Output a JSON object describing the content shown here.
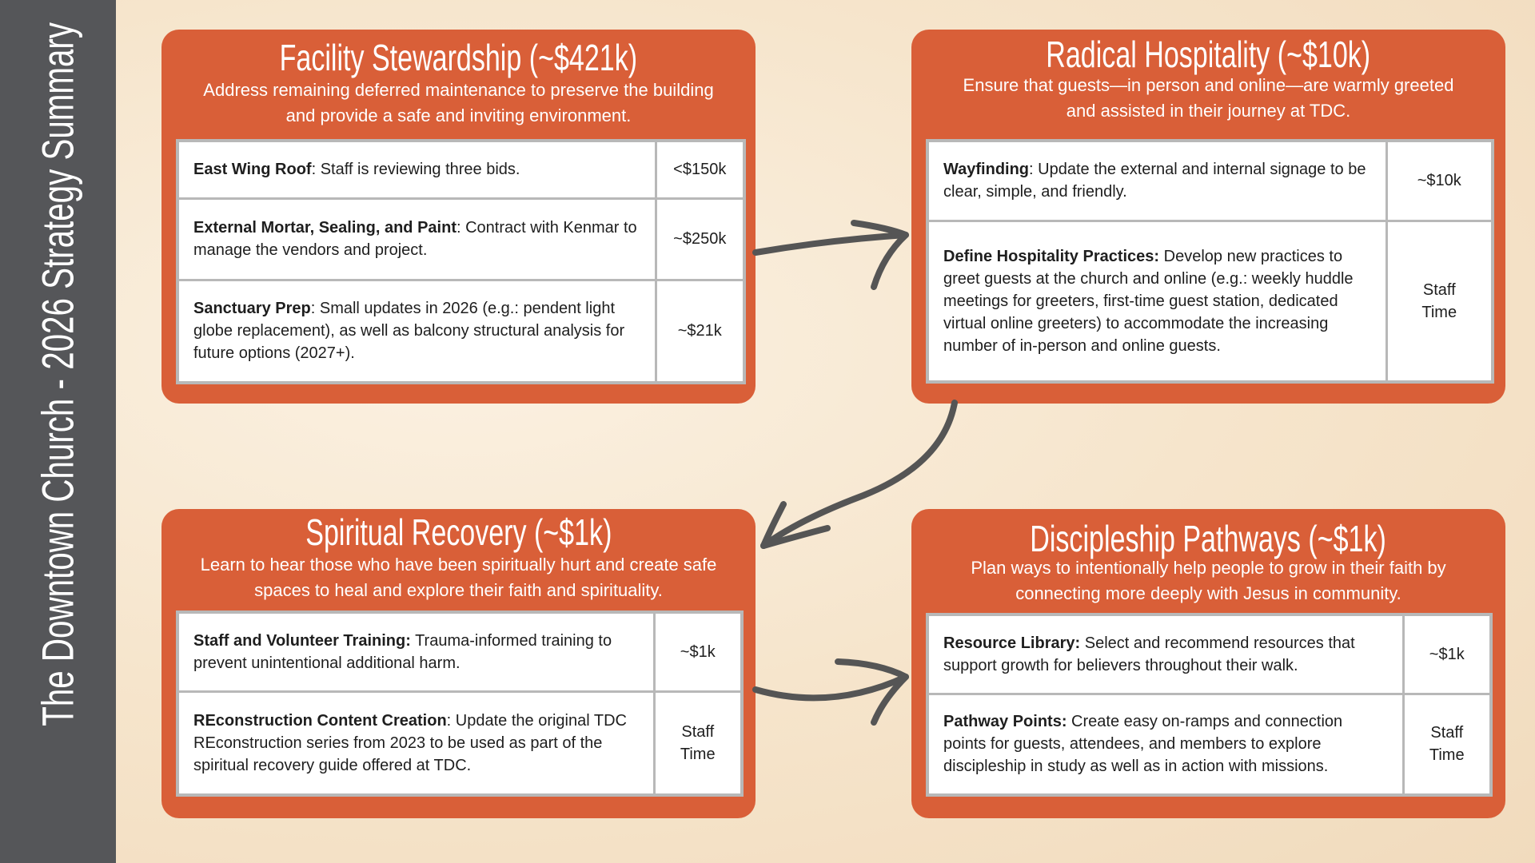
{
  "sidebar": {
    "title": "The Downtown Church - 2026 Strategy Summary"
  },
  "colors": {
    "card": "#d95f38",
    "sidebar": "#555659",
    "arrow": "#555555",
    "border": "#b8b8b8"
  },
  "cards": [
    {
      "title": "Facility Stewardship (~$421k)",
      "subtitle": "Address remaining deferred maintenance to preserve the building and provide a safe and inviting environment.",
      "rows": [
        {
          "name": "East Wing Roof",
          "sep": ": ",
          "text": "Staff is reviewing three bids.",
          "value": "<$150k"
        },
        {
          "name": "External Mortar, Sealing, and Paint",
          "sep": ": ",
          "text": "Contract with Kenmar to manage the vendors and project.",
          "value": "~$250k"
        },
        {
          "name": "Sanctuary Prep",
          "sep": ": ",
          "text": "Small updates in 2026 (e.g.: pendent light globe replacement), as well as balcony structural analysis for future options (2027+).",
          "value": "~$21k"
        }
      ]
    },
    {
      "title": "Radical Hospitality (~$10k)",
      "subtitle": "Ensure that guests—in person and online—are warmly greeted and assisted in their journey at TDC.",
      "rows": [
        {
          "name": "Wayfinding",
          "sep": ": ",
          "text": "Update the external and internal signage to be clear, simple, and friendly.",
          "value": "~$10k"
        },
        {
          "name": "Define Hospitality Practices:",
          "sep": " ",
          "text": "Develop new practices to greet guests at the church and online (e.g.: weekly huddle meetings for greeters, first-time guest station, dedicated virtual online greeters) to accommodate the increasing number of in-person and online guests.",
          "value": "Staff Time"
        }
      ]
    },
    {
      "title": "Spiritual Recovery (~$1k)",
      "subtitle": "Learn to hear those who have been spiritually hurt and create safe spaces to heal and explore their faith and spirituality.",
      "rows": [
        {
          "name": "Staff and Volunteer Training:",
          "sep": " ",
          "text": "Trauma-informed training to prevent unintentional additional harm.",
          "value": "~$1k"
        },
        {
          "name": "REconstruction Content Creation",
          "sep": ": ",
          "text": "Update the original TDC REconstruction series from 2023 to be used as part of the spiritual recovery guide offered at TDC.",
          "value": "Staff Time"
        }
      ]
    },
    {
      "title": "Discipleship Pathways (~$1k)",
      "subtitle": "Plan ways to intentionally help people to grow in their faith by connecting more deeply with Jesus in community.",
      "rows": [
        {
          "name": "Resource Library:",
          "sep": " ",
          "text": "Select and recommend resources that support growth for believers throughout their walk.",
          "value": "~$1k"
        },
        {
          "name": "Pathway Points:",
          "sep": " ",
          "text": "Create easy on-ramps and connection points for guests, attendees, and members to explore discipleship in study as well as in action with missions.",
          "value": "Staff Time"
        }
      ]
    }
  ]
}
